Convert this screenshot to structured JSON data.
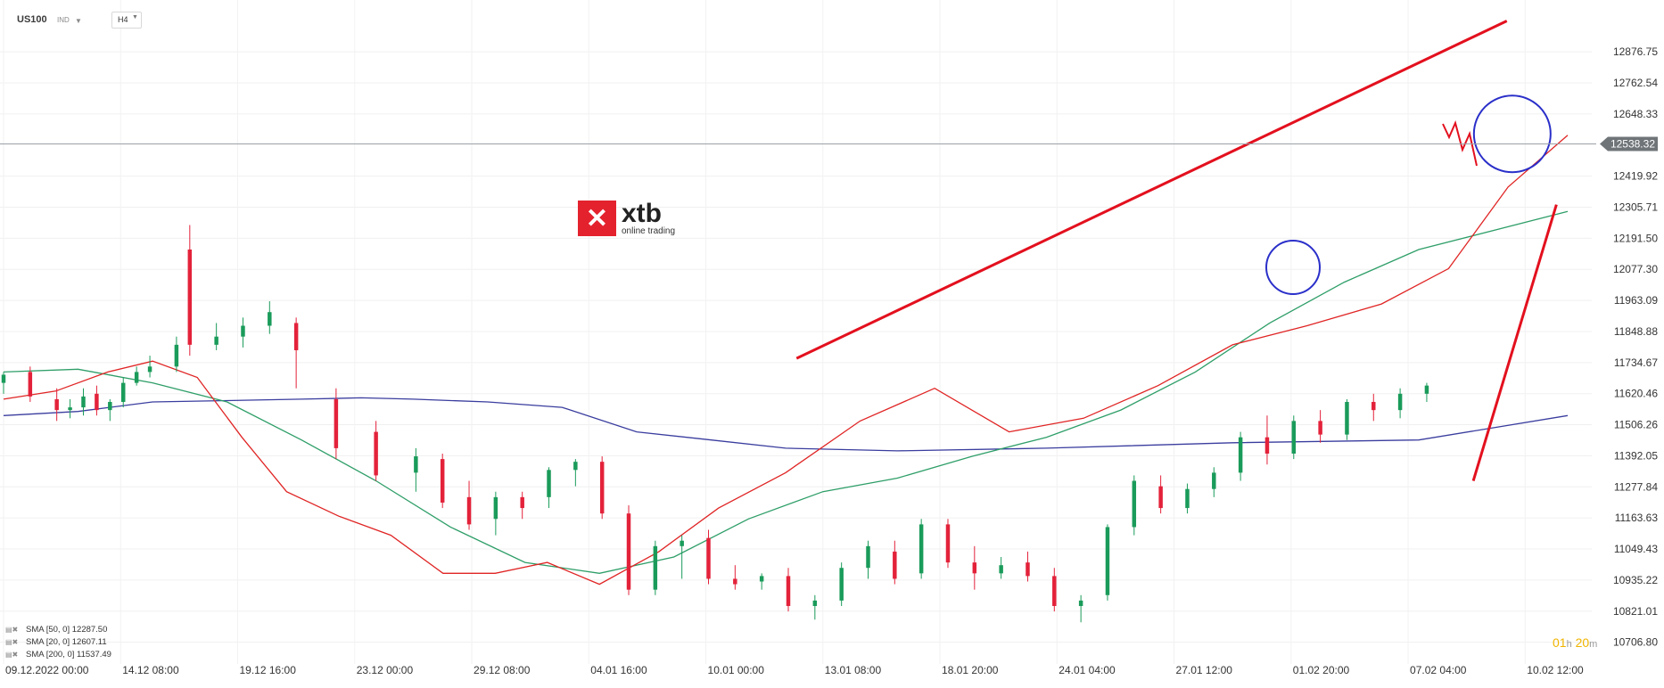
{
  "header": {
    "symbol": "US100",
    "instrument_type": "IND",
    "timeframe": "H4"
  },
  "logo": {
    "name": "xtb",
    "tagline": "online trading"
  },
  "current_price": "12538.32",
  "countdown": {
    "hours": "01",
    "h": "h",
    "minutes": "20",
    "m": "m"
  },
  "legend": [
    {
      "label": "SMA [50, 0] 12287.50",
      "color": "#2e9e68"
    },
    {
      "label": "SMA [20, 0] 12607.11",
      "color": "#e02424"
    },
    {
      "label": "SMA [200, 0] 11537.49",
      "color": "#3a3d9e"
    }
  ],
  "chart_data": {
    "type": "candlestick",
    "title": "",
    "ylim": [
      10650,
      12995
    ],
    "y_ticks": [
      12876.75,
      12762.54,
      12648.33,
      12419.92,
      12305.71,
      12191.5,
      12077.3,
      11963.09,
      11848.88,
      11734.67,
      11620.46,
      11506.26,
      11392.05,
      11277.84,
      11163.63,
      11049.43,
      10935.22,
      10821.01,
      10706.8
    ],
    "x_labels": [
      "09.12.2022  00:00",
      "14.12  08:00",
      "19.12  16:00",
      "23.12  00:00",
      "29.12  08:00",
      "04.01  16:00",
      "10.01  00:00",
      "13.01  08:00",
      "18.01  20:00",
      "24.01  04:00",
      "27.01  12:00",
      "01.02  20:00",
      "07.02  04:00",
      "10.02  12:00"
    ],
    "bar_count": 236,
    "up_color": "#1a9b5a",
    "down_color": "#e3223a",
    "candles": [
      {
        "t": 0,
        "o": 11660,
        "h": 11700,
        "l": 11620,
        "c": 11690
      },
      {
        "t": 4,
        "o": 11700,
        "h": 11720,
        "l": 11590,
        "c": 11610
      },
      {
        "t": 8,
        "o": 11600,
        "h": 11640,
        "l": 11520,
        "c": 11560
      },
      {
        "t": 10,
        "o": 11560,
        "h": 11600,
        "l": 11530,
        "c": 11570
      },
      {
        "t": 12,
        "o": 11570,
        "h": 11640,
        "l": 11540,
        "c": 11610
      },
      {
        "t": 14,
        "o": 11620,
        "h": 11650,
        "l": 11540,
        "c": 11560
      },
      {
        "t": 16,
        "o": 11560,
        "h": 11600,
        "l": 11520,
        "c": 11590
      },
      {
        "t": 18,
        "o": 11590,
        "h": 11680,
        "l": 11570,
        "c": 11660
      },
      {
        "t": 20,
        "o": 11660,
        "h": 11720,
        "l": 11650,
        "c": 11700
      },
      {
        "t": 22,
        "o": 11700,
        "h": 11760,
        "l": 11680,
        "c": 11720
      },
      {
        "t": 26,
        "o": 11720,
        "h": 11830,
        "l": 11700,
        "c": 11800
      },
      {
        "t": 28,
        "o": 12150,
        "h": 12240,
        "l": 11760,
        "c": 11800
      },
      {
        "t": 32,
        "o": 11800,
        "h": 11880,
        "l": 11780,
        "c": 11830
      },
      {
        "t": 36,
        "o": 11830,
        "h": 11900,
        "l": 11790,
        "c": 11870
      },
      {
        "t": 40,
        "o": 11870,
        "h": 11960,
        "l": 11840,
        "c": 11920
      },
      {
        "t": 44,
        "o": 11880,
        "h": 11900,
        "l": 11640,
        "c": 11780
      },
      {
        "t": 50,
        "o": 11600,
        "h": 11640,
        "l": 11380,
        "c": 11420
      },
      {
        "t": 56,
        "o": 11480,
        "h": 11520,
        "l": 11300,
        "c": 11320
      },
      {
        "t": 62,
        "o": 11330,
        "h": 11420,
        "l": 11260,
        "c": 11390
      },
      {
        "t": 66,
        "o": 11380,
        "h": 11400,
        "l": 11200,
        "c": 11220
      },
      {
        "t": 70,
        "o": 11240,
        "h": 11300,
        "l": 11120,
        "c": 11140
      },
      {
        "t": 74,
        "o": 11160,
        "h": 11260,
        "l": 11100,
        "c": 11240
      },
      {
        "t": 78,
        "o": 11240,
        "h": 11260,
        "l": 11160,
        "c": 11200
      },
      {
        "t": 82,
        "o": 11240,
        "h": 11350,
        "l": 11200,
        "c": 11340
      },
      {
        "t": 86,
        "o": 11340,
        "h": 11380,
        "l": 11280,
        "c": 11370
      },
      {
        "t": 90,
        "o": 11370,
        "h": 11390,
        "l": 11160,
        "c": 11180
      },
      {
        "t": 94,
        "o": 11180,
        "h": 11210,
        "l": 10880,
        "c": 10900
      },
      {
        "t": 98,
        "o": 10900,
        "h": 11080,
        "l": 10880,
        "c": 11060
      },
      {
        "t": 102,
        "o": 11060,
        "h": 11100,
        "l": 10940,
        "c": 11080
      },
      {
        "t": 106,
        "o": 11090,
        "h": 11120,
        "l": 10920,
        "c": 10940
      },
      {
        "t": 110,
        "o": 10940,
        "h": 10990,
        "l": 10900,
        "c": 10920
      },
      {
        "t": 114,
        "o": 10930,
        "h": 10960,
        "l": 10900,
        "c": 10950
      },
      {
        "t": 118,
        "o": 10950,
        "h": 10980,
        "l": 10820,
        "c": 10840
      },
      {
        "t": 122,
        "o": 10840,
        "h": 10880,
        "l": 10790,
        "c": 10860
      },
      {
        "t": 126,
        "o": 10860,
        "h": 11000,
        "l": 10840,
        "c": 10980
      },
      {
        "t": 130,
        "o": 10980,
        "h": 11080,
        "l": 10940,
        "c": 11060
      },
      {
        "t": 134,
        "o": 11040,
        "h": 11080,
        "l": 10920,
        "c": 10940
      },
      {
        "t": 138,
        "o": 10960,
        "h": 11160,
        "l": 10940,
        "c": 11140
      },
      {
        "t": 142,
        "o": 11140,
        "h": 11160,
        "l": 10980,
        "c": 11000
      },
      {
        "t": 146,
        "o": 11000,
        "h": 11060,
        "l": 10900,
        "c": 10960
      },
      {
        "t": 150,
        "o": 10960,
        "h": 11020,
        "l": 10940,
        "c": 10990
      },
      {
        "t": 154,
        "o": 11000,
        "h": 11040,
        "l": 10930,
        "c": 10950
      },
      {
        "t": 158,
        "o": 10950,
        "h": 10980,
        "l": 10820,
        "c": 10840
      },
      {
        "t": 162,
        "o": 10840,
        "h": 10880,
        "l": 10780,
        "c": 10860
      },
      {
        "t": 166,
        "o": 10880,
        "h": 11140,
        "l": 10860,
        "c": 11130
      },
      {
        "t": 170,
        "o": 11130,
        "h": 11320,
        "l": 11100,
        "c": 11300
      },
      {
        "t": 174,
        "o": 11280,
        "h": 11320,
        "l": 11180,
        "c": 11200
      },
      {
        "t": 178,
        "o": 11200,
        "h": 11290,
        "l": 11180,
        "c": 11270
      },
      {
        "t": 182,
        "o": 11270,
        "h": 11350,
        "l": 11240,
        "c": 11330
      },
      {
        "t": 186,
        "o": 11330,
        "h": 11480,
        "l": 11300,
        "c": 11460
      },
      {
        "t": 190,
        "o": 11460,
        "h": 11540,
        "l": 11360,
        "c": 11400
      },
      {
        "t": 194,
        "o": 11400,
        "h": 11540,
        "l": 11380,
        "c": 11520
      },
      {
        "t": 198,
        "o": 11520,
        "h": 11560,
        "l": 11440,
        "c": 11470
      },
      {
        "t": 202,
        "o": 11470,
        "h": 11600,
        "l": 11450,
        "c": 11590
      },
      {
        "t": 206,
        "o": 11590,
        "h": 11620,
        "l": 11520,
        "c": 11560
      },
      {
        "t": 210,
        "o": 11560,
        "h": 11640,
        "l": 11530,
        "c": 11620
      },
      {
        "t": 214,
        "o": 11620,
        "h": 11660,
        "l": 11590,
        "c": 11650
      }
    ]
  }
}
